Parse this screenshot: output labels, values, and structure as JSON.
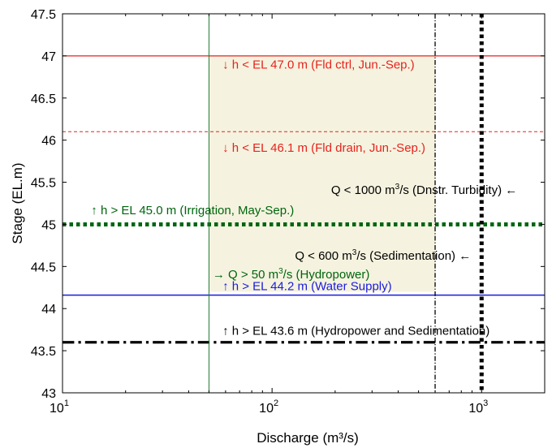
{
  "chart_data": {
    "type": "line",
    "xscale": "log",
    "xlabel": "Discharge (m³/s)",
    "ylabel": "Stage (EL.m)",
    "xlim": [
      10,
      2000
    ],
    "ylim": [
      43,
      47.5
    ],
    "grid": false,
    "x_ticks": [
      {
        "value": 10,
        "base": "10",
        "exp": "1"
      },
      {
        "value": 100,
        "base": "10",
        "exp": "2"
      },
      {
        "value": 1000,
        "base": "10",
        "exp": "3"
      }
    ],
    "y_ticks": [
      "43",
      "43.5",
      "44",
      "44.5",
      "45",
      "45.5",
      "46",
      "46.5",
      "47",
      "47.5"
    ],
    "feasible_region": {
      "x": [
        50,
        600
      ],
      "y": [
        44.2,
        47.0
      ],
      "color": "#f5f3df"
    },
    "hlines": [
      {
        "y": 47.0,
        "color": "#e8221e",
        "style": "solid",
        "width": 1.3
      },
      {
        "y": 46.1,
        "color": "#e8221e",
        "style": "dashed",
        "width": 1
      },
      {
        "y": 45.0,
        "color": "#00650f",
        "style": "dotted",
        "width": 5
      },
      {
        "y": 44.16,
        "color": "#1a1adf",
        "style": "solid",
        "width": 1.5
      },
      {
        "y": 43.6,
        "color": "#000000",
        "style": "dashdot",
        "width": 3.2
      }
    ],
    "vlines": [
      {
        "x": 50,
        "color": "#1f7a2e",
        "style": "solid",
        "width": 1
      },
      {
        "x": 600,
        "color": "#000000",
        "style": "dashdot",
        "width": 1.3
      },
      {
        "x": 1000,
        "color": "#000000",
        "style": "dotted",
        "width": 5
      }
    ],
    "annotations": [
      {
        "text": "↓ h < EL 47.0 m (Fld ctrl, Jun.-Sep.)",
        "x": 58,
        "y": 46.85,
        "color": "#e8221e"
      },
      {
        "text": "↓ h < EL 46.1 m (Fld drain, Jun.-Sep.)",
        "x": 58,
        "y": 45.86,
        "color": "#e8221e"
      },
      {
        "text": "Q < 1000 m³/s (Dnstr. Turbidity) ←",
        "x": 1480,
        "y": 45.36,
        "color": "#000000",
        "anchor": "end"
      },
      {
        "text": "↑ h > EL 45.0 m (Irrigation, May-Sep.)",
        "x": 13.7,
        "y": 45.12,
        "color": "#00650f"
      },
      {
        "text": "Q < 600 m³/s (Sedimentation) ←",
        "x": 890,
        "y": 44.58,
        "color": "#000000",
        "anchor": "end"
      },
      {
        "text": "→ Q > 50 m³/s (Hydropower)",
        "x": 52,
        "y": 44.36,
        "color": "#00650f"
      },
      {
        "text": "↑ h > EL 44.2 m (Water Supply)",
        "x": 58,
        "y": 44.22,
        "color": "#1a1adf"
      },
      {
        "text": "↑ h > EL 43.6 m (Hydropower and Sedimentation)",
        "x": 58,
        "y": 43.69,
        "color": "#000000"
      }
    ]
  }
}
